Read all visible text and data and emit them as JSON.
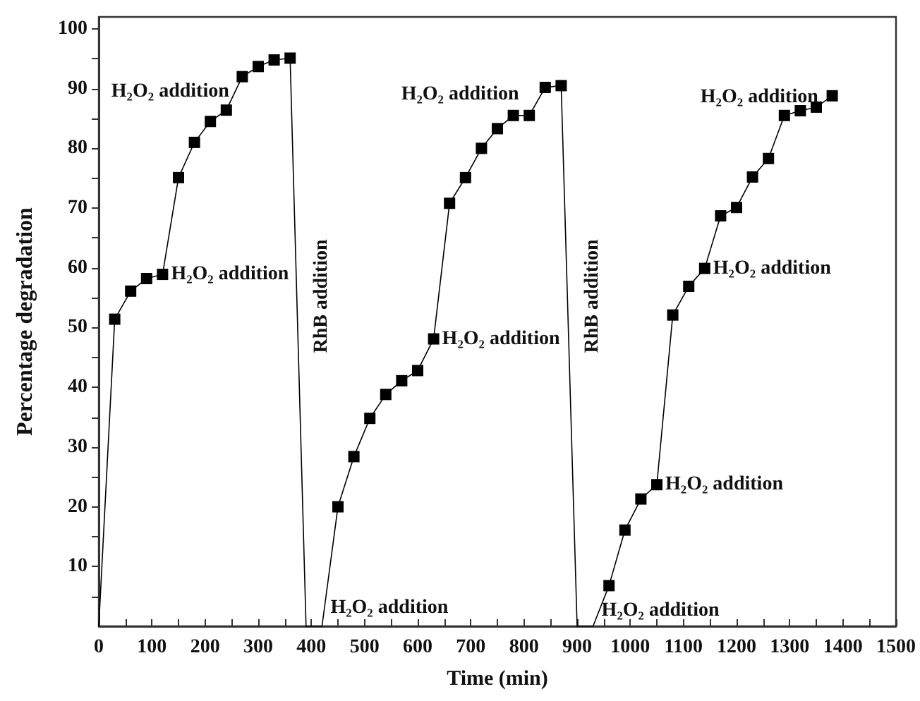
{
  "chart_data": {
    "type": "line",
    "xlabel": "Time (min)",
    "ylabel": "Percentage degradation",
    "x": [
      0,
      30,
      60,
      90,
      120,
      150,
      180,
      210,
      240,
      270,
      300,
      330,
      360,
      390,
      420,
      450,
      480,
      510,
      540,
      570,
      600,
      630,
      660,
      690,
      720,
      750,
      780,
      810,
      840,
      870,
      900,
      930,
      960,
      990,
      1020,
      1050,
      1080,
      1110,
      1140,
      1170,
      1200,
      1230,
      1260,
      1290,
      1320,
      1350,
      1380
    ],
    "series": [
      {
        "color": "#000000",
        "marker": "square",
        "values": [
          0,
          51.4,
          56.1,
          58.2,
          58.9,
          75.1,
          81,
          84.5,
          86.4,
          92,
          93.7,
          94.8,
          95.1,
          0,
          0,
          20,
          28.4,
          34.8,
          38.8,
          41.1,
          42.8,
          48.1,
          70.8,
          75.1,
          80,
          83.3,
          85.5,
          85.5,
          90.2,
          90.5,
          0,
          0,
          6.8,
          16.1,
          21.3,
          23.7,
          52.1,
          56.9,
          59.9,
          68.7,
          70.1,
          75.2,
          78.3,
          85.5,
          86.3,
          86.9,
          88.8
        ]
      }
    ],
    "xlim": [
      0,
      1500
    ],
    "xticks": [
      0,
      {
        "value": 50,
        "label": null
      },
      100,
      {
        "value": 150,
        "label": null
      },
      200,
      {
        "value": 250,
        "label": null
      },
      300,
      {
        "value": 350,
        "label": null
      },
      400,
      {
        "value": 450,
        "label": null
      },
      500,
      {
        "value": 550,
        "label": null
      },
      600,
      {
        "value": 650,
        "label": null
      },
      700,
      {
        "value": 750,
        "label": null
      },
      800,
      {
        "value": 850,
        "label": null
      },
      900,
      {
        "value": 950,
        "label": null
      },
      1000,
      {
        "value": 1050,
        "label": null
      },
      1100,
      {
        "value": 1150,
        "label": null
      },
      1200,
      {
        "value": 1250,
        "label": null
      },
      1300,
      {
        "value": 1350,
        "label": null
      },
      1400,
      {
        "value": 1450,
        "label": null
      },
      1500
    ],
    "ylim": [
      0,
      102
    ],
    "yticks": [
      {
        "value": 5,
        "label": null
      },
      10,
      {
        "value": 15,
        "label": null
      },
      20,
      {
        "value": 25,
        "label": null
      },
      30,
      {
        "value": 35,
        "label": null
      },
      40,
      {
        "value": 45,
        "label": null
      },
      50,
      {
        "value": 55,
        "label": null
      },
      60,
      {
        "value": 65,
        "label": null
      },
      70,
      {
        "value": 75,
        "label": null
      },
      80,
      {
        "value": 85,
        "label": null
      },
      90,
      {
        "value": 95,
        "label": null
      },
      100
    ],
    "grid": false,
    "annotations": [
      {
        "text": "H₂O₂ addition",
        "x": 120,
        "y": 58.9
      },
      {
        "text": "H₂O₂ addition",
        "x": 240,
        "y": 86.4
      },
      {
        "text": "H₂O₂ addition",
        "x": 630,
        "y": 48.1
      },
      {
        "text": "H₂O₂ addition",
        "x": 780,
        "y": 85.5
      },
      {
        "text": "H₂O₂ addition",
        "x": 1290,
        "y": 85.5
      },
      {
        "text": "H₂O₂ addition",
        "x": 1140,
        "y": 59.9
      },
      {
        "text": "H₂O₂ addition",
        "x": 1050,
        "y": 23.7
      },
      {
        "text": "H₂O₂ addition",
        "x": 420,
        "y": 0
      },
      {
        "text": "H₂O₂ addition",
        "x": 930,
        "y": 0
      },
      "RhB addition",
      "RhB addition"
    ]
  }
}
